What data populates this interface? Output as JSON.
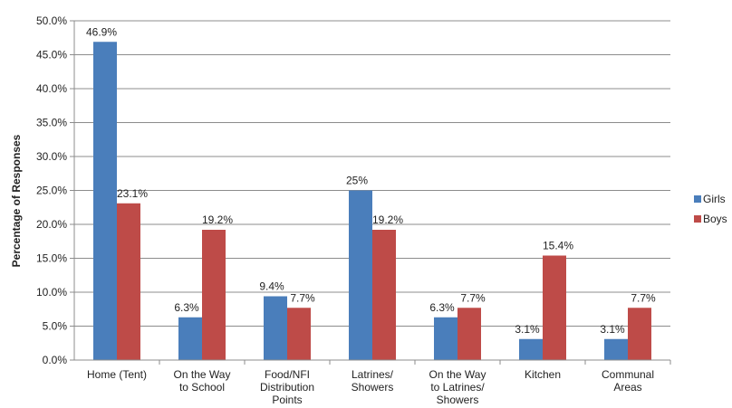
{
  "chart_data": {
    "type": "bar",
    "title": "",
    "xlabel": "",
    "ylabel": "Percentage of Responses",
    "ylim": [
      0,
      50
    ],
    "ytick_step": 5,
    "ytick_labels": [
      "0.0%",
      "5.0%",
      "10.0%",
      "15.0%",
      "20.0%",
      "25.0%",
      "30.0%",
      "35.0%",
      "40.0%",
      "45.0%",
      "50.0%"
    ],
    "grid": true,
    "legend_position": "right",
    "categories": [
      [
        "Home (Tent)"
      ],
      [
        "On the Way",
        "to School"
      ],
      [
        "Food/NFI",
        "Distribution",
        "Points"
      ],
      [
        "Latrines/",
        "Showers"
      ],
      [
        "On the Way",
        "to Latrines/",
        "Showers"
      ],
      [
        "Kitchen"
      ],
      [
        "Communal",
        "Areas"
      ]
    ],
    "series": [
      {
        "name": "Girls",
        "color": "#4a7ebb",
        "values": [
          46.9,
          6.3,
          9.4,
          25,
          6.3,
          3.1,
          3.1
        ],
        "labels": [
          "46.9%",
          "6.3%",
          "9.4%",
          "25%",
          "6.3%",
          "3.1%",
          "3.1%"
        ]
      },
      {
        "name": "Boys",
        "color": "#be4b48",
        "values": [
          23.1,
          19.2,
          7.7,
          19.2,
          7.7,
          15.4,
          7.7
        ],
        "labels": [
          "23.1%",
          "19.2%",
          "7.7%",
          "19.2%",
          "7.7%",
          "15.4%",
          "7.7%"
        ]
      }
    ]
  }
}
